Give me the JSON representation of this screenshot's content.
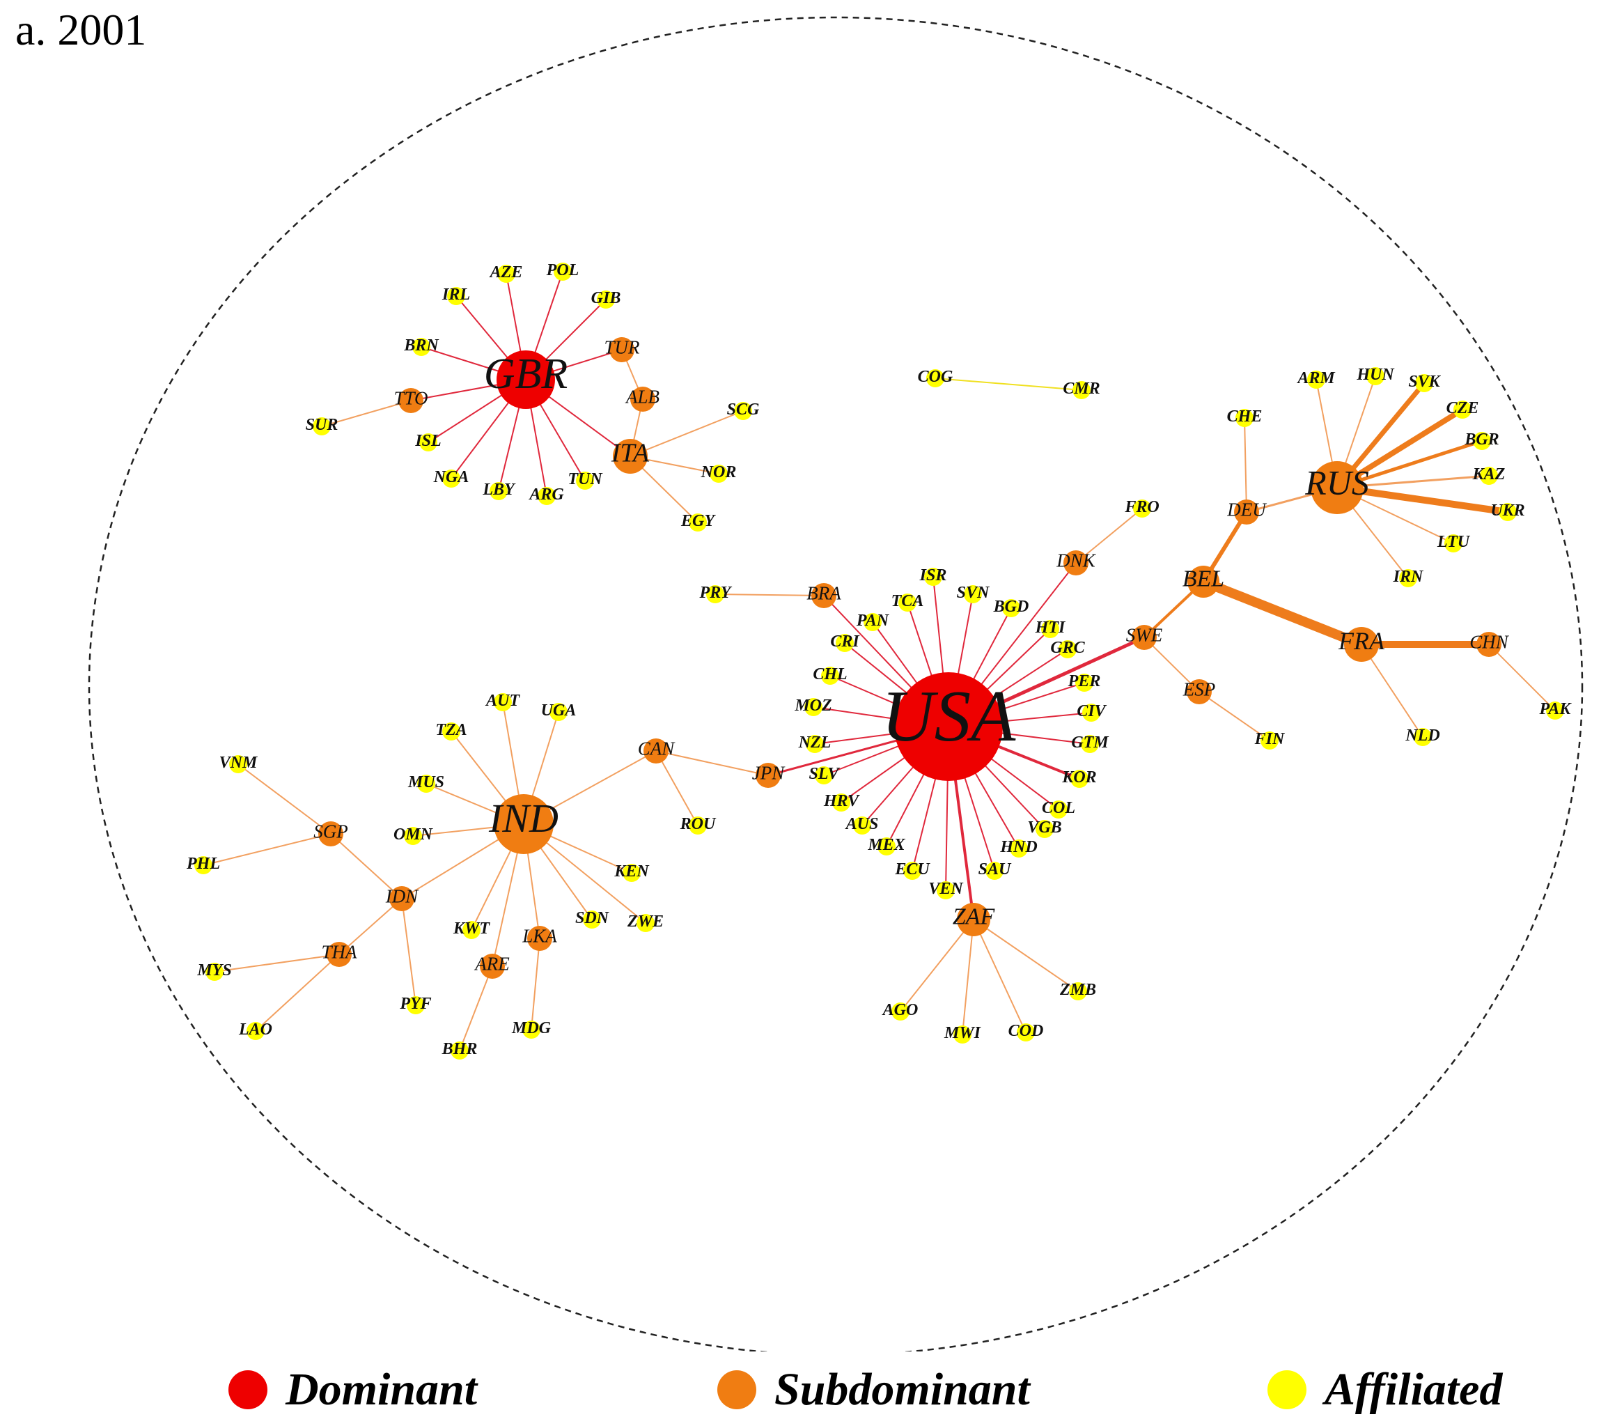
{
  "panel_label": "a. 2001",
  "colors": {
    "dominant": "#ee0000",
    "subdominant": "#f07d12",
    "affiliated": "#ffff00",
    "dominant_edge": "#e0283c",
    "subdominant_edge": "#f2a060",
    "affiliated_edge": "#f0e020"
  },
  "legend": [
    {
      "label": "Dominant",
      "role": "dominant"
    },
    {
      "label": "Subdominant",
      "role": "subdominant"
    },
    {
      "label": "Affiliated",
      "role": "affiliated"
    }
  ],
  "network": {
    "nodes": [
      {
        "id": "USA",
        "role": "dominant"
      },
      {
        "id": "GBR",
        "role": "dominant"
      },
      {
        "id": "IND",
        "role": "subdominant"
      },
      {
        "id": "RUS",
        "role": "subdominant"
      },
      {
        "id": "FRA",
        "role": "subdominant"
      },
      {
        "id": "BEL",
        "role": "subdominant"
      },
      {
        "id": "DEU",
        "role": "subdominant"
      },
      {
        "id": "SWE",
        "role": "subdominant"
      },
      {
        "id": "ESP",
        "role": "subdominant"
      },
      {
        "id": "CHN",
        "role": "subdominant"
      },
      {
        "id": "DNK",
        "role": "subdominant"
      },
      {
        "id": "ITA",
        "role": "subdominant"
      },
      {
        "id": "TUR",
        "role": "subdominant"
      },
      {
        "id": "ALB",
        "role": "subdominant"
      },
      {
        "id": "TTO",
        "role": "subdominant"
      },
      {
        "id": "BRA",
        "role": "subdominant"
      },
      {
        "id": "CAN",
        "role": "subdominant"
      },
      {
        "id": "JPN",
        "role": "subdominant"
      },
      {
        "id": "ZAF",
        "role": "subdominant"
      },
      {
        "id": "SGP",
        "role": "subdominant"
      },
      {
        "id": "IDN",
        "role": "subdominant"
      },
      {
        "id": "THA",
        "role": "subdominant"
      },
      {
        "id": "LKA",
        "role": "subdominant"
      },
      {
        "id": "ARE",
        "role": "subdominant"
      },
      {
        "id": "AZE",
        "role": "affiliated"
      },
      {
        "id": "POL",
        "role": "affiliated"
      },
      {
        "id": "IRL",
        "role": "affiliated"
      },
      {
        "id": "GIB",
        "role": "affiliated"
      },
      {
        "id": "BRN",
        "role": "affiliated"
      },
      {
        "id": "SUR",
        "role": "affiliated"
      },
      {
        "id": "ISL",
        "role": "affiliated"
      },
      {
        "id": "NGA",
        "role": "affiliated"
      },
      {
        "id": "LBY",
        "role": "affiliated"
      },
      {
        "id": "ARG",
        "role": "affiliated"
      },
      {
        "id": "TUN",
        "role": "affiliated"
      },
      {
        "id": "SCG",
        "role": "affiliated"
      },
      {
        "id": "NOR",
        "role": "affiliated"
      },
      {
        "id": "EGY",
        "role": "affiliated"
      },
      {
        "id": "COG",
        "role": "affiliated"
      },
      {
        "id": "CMR",
        "role": "affiliated"
      },
      {
        "id": "ARM",
        "role": "affiliated"
      },
      {
        "id": "HUN",
        "role": "affiliated"
      },
      {
        "id": "SVK",
        "role": "affiliated"
      },
      {
        "id": "CZE",
        "role": "affiliated"
      },
      {
        "id": "BGR",
        "role": "affiliated"
      },
      {
        "id": "KAZ",
        "role": "affiliated"
      },
      {
        "id": "UKR",
        "role": "affiliated"
      },
      {
        "id": "LTU",
        "role": "affiliated"
      },
      {
        "id": "IRN",
        "role": "affiliated"
      },
      {
        "id": "CHE",
        "role": "affiliated"
      },
      {
        "id": "FRO",
        "role": "affiliated"
      },
      {
        "id": "NLD",
        "role": "affiliated"
      },
      {
        "id": "PAK",
        "role": "affiliated"
      },
      {
        "id": "FIN",
        "role": "affiliated"
      },
      {
        "id": "PRY",
        "role": "affiliated"
      },
      {
        "id": "ISR",
        "role": "affiliated"
      },
      {
        "id": "SVN",
        "role": "affiliated"
      },
      {
        "id": "BGD",
        "role": "affiliated"
      },
      {
        "id": "TCA",
        "role": "affiliated"
      },
      {
        "id": "PAN",
        "role": "affiliated"
      },
      {
        "id": "CRI",
        "role": "affiliated"
      },
      {
        "id": "HTI",
        "role": "affiliated"
      },
      {
        "id": "GRC",
        "role": "affiliated"
      },
      {
        "id": "CHL",
        "role": "affiliated"
      },
      {
        "id": "PER",
        "role": "affiliated"
      },
      {
        "id": "MOZ",
        "role": "affiliated"
      },
      {
        "id": "CIV",
        "role": "affiliated"
      },
      {
        "id": "NZL",
        "role": "affiliated"
      },
      {
        "id": "GTM",
        "role": "affiliated"
      },
      {
        "id": "SLV",
        "role": "affiliated"
      },
      {
        "id": "KOR",
        "role": "affiliated"
      },
      {
        "id": "HRV",
        "role": "affiliated"
      },
      {
        "id": "COL",
        "role": "affiliated"
      },
      {
        "id": "AUS",
        "role": "affiliated"
      },
      {
        "id": "VGB",
        "role": "affiliated"
      },
      {
        "id": "MEX",
        "role": "affiliated"
      },
      {
        "id": "HND",
        "role": "affiliated"
      },
      {
        "id": "ECU",
        "role": "affiliated"
      },
      {
        "id": "SAU",
        "role": "affiliated"
      },
      {
        "id": "VEN",
        "role": "affiliated"
      },
      {
        "id": "AGO",
        "role": "affiliated"
      },
      {
        "id": "MWI",
        "role": "affiliated"
      },
      {
        "id": "COD",
        "role": "affiliated"
      },
      {
        "id": "ZMB",
        "role": "affiliated"
      },
      {
        "id": "AUT",
        "role": "affiliated"
      },
      {
        "id": "UGA",
        "role": "affiliated"
      },
      {
        "id": "TZA",
        "role": "affiliated"
      },
      {
        "id": "MUS",
        "role": "affiliated"
      },
      {
        "id": "OMN",
        "role": "affiliated"
      },
      {
        "id": "KEN",
        "role": "affiliated"
      },
      {
        "id": "ZWE",
        "role": "affiliated"
      },
      {
        "id": "SDN",
        "role": "affiliated"
      },
      {
        "id": "KWT",
        "role": "affiliated"
      },
      {
        "id": "MDG",
        "role": "affiliated"
      },
      {
        "id": "BHR",
        "role": "affiliated"
      },
      {
        "id": "VNM",
        "role": "affiliated"
      },
      {
        "id": "PHL",
        "role": "affiliated"
      },
      {
        "id": "MYS",
        "role": "affiliated"
      },
      {
        "id": "LAO",
        "role": "affiliated"
      },
      {
        "id": "PYF",
        "role": "affiliated"
      },
      {
        "id": "ROU",
        "role": "affiliated"
      }
    ],
    "edges": [
      [
        "GBR",
        "AZE"
      ],
      [
        "GBR",
        "POL"
      ],
      [
        "GBR",
        "IRL"
      ],
      [
        "GBR",
        "GIB"
      ],
      [
        "GBR",
        "BRN"
      ],
      [
        "GBR",
        "TUR"
      ],
      [
        "GBR",
        "TTO"
      ],
      [
        "GBR",
        "ISL"
      ],
      [
        "GBR",
        "NGA"
      ],
      [
        "GBR",
        "LBY"
      ],
      [
        "GBR",
        "ARG"
      ],
      [
        "GBR",
        "TUN"
      ],
      [
        "GBR",
        "ITA"
      ],
      [
        "TTO",
        "SUR"
      ],
      [
        "TUR",
        "ALB"
      ],
      [
        "ALB",
        "ITA"
      ],
      [
        "ITA",
        "SCG"
      ],
      [
        "ITA",
        "NOR"
      ],
      [
        "ITA",
        "EGY"
      ],
      [
        "COG",
        "CMR"
      ],
      [
        "RUS",
        "ARM"
      ],
      [
        "RUS",
        "HUN"
      ],
      [
        "RUS",
        "SVK"
      ],
      [
        "RUS",
        "CZE"
      ],
      [
        "RUS",
        "BGR"
      ],
      [
        "RUS",
        "KAZ"
      ],
      [
        "RUS",
        "UKR"
      ],
      [
        "RUS",
        "LTU"
      ],
      [
        "RUS",
        "IRN"
      ],
      [
        "RUS",
        "DEU"
      ],
      [
        "DEU",
        "CHE"
      ],
      [
        "DEU",
        "BEL"
      ],
      [
        "BEL",
        "FRA"
      ],
      [
        "BEL",
        "SWE"
      ],
      [
        "FRA",
        "CHN"
      ],
      [
        "FRA",
        "NLD"
      ],
      [
        "CHN",
        "PAK"
      ],
      [
        "SWE",
        "ESP"
      ],
      [
        "ESP",
        "FIN"
      ],
      [
        "SWE",
        "USA"
      ],
      [
        "DNK",
        "FRO"
      ],
      [
        "USA",
        "DNK"
      ],
      [
        "USA",
        "ISR"
      ],
      [
        "USA",
        "SVN"
      ],
      [
        "USA",
        "BGD"
      ],
      [
        "USA",
        "TCA"
      ],
      [
        "USA",
        "PAN"
      ],
      [
        "USA",
        "CRI"
      ],
      [
        "USA",
        "HTI"
      ],
      [
        "USA",
        "GRC"
      ],
      [
        "USA",
        "CHL"
      ],
      [
        "USA",
        "PER"
      ],
      [
        "USA",
        "MOZ"
      ],
      [
        "USA",
        "CIV"
      ],
      [
        "USA",
        "NZL"
      ],
      [
        "USA",
        "GTM"
      ],
      [
        "USA",
        "SLV"
      ],
      [
        "USA",
        "KOR"
      ],
      [
        "USA",
        "HRV"
      ],
      [
        "USA",
        "COL"
      ],
      [
        "USA",
        "AUS"
      ],
      [
        "USA",
        "VGB"
      ],
      [
        "USA",
        "MEX"
      ],
      [
        "USA",
        "HND"
      ],
      [
        "USA",
        "ECU"
      ],
      [
        "USA",
        "SAU"
      ],
      [
        "USA",
        "VEN"
      ],
      [
        "USA",
        "ZAF"
      ],
      [
        "USA",
        "BRA"
      ],
      [
        "USA",
        "JPN"
      ],
      [
        "BRA",
        "PRY"
      ],
      [
        "ZAF",
        "AGO"
      ],
      [
        "ZAF",
        "MWI"
      ],
      [
        "ZAF",
        "COD"
      ],
      [
        "ZAF",
        "ZMB"
      ],
      [
        "JPN",
        "CAN"
      ],
      [
        "CAN",
        "IND"
      ],
      [
        "CAN",
        "ROU"
      ],
      [
        "IND",
        "AUT"
      ],
      [
        "IND",
        "UGA"
      ],
      [
        "IND",
        "TZA"
      ],
      [
        "IND",
        "MUS"
      ],
      [
        "IND",
        "OMN"
      ],
      [
        "IND",
        "KEN"
      ],
      [
        "IND",
        "ZWE"
      ],
      [
        "IND",
        "SDN"
      ],
      [
        "IND",
        "LKA"
      ],
      [
        "IND",
        "ARE"
      ],
      [
        "IND",
        "KWT"
      ],
      [
        "IND",
        "IDN"
      ],
      [
        "LKA",
        "MDG"
      ],
      [
        "ARE",
        "BHR"
      ],
      [
        "IDN",
        "SGP"
      ],
      [
        "IDN",
        "THA"
      ],
      [
        "IDN",
        "PYF"
      ],
      [
        "SGP",
        "VNM"
      ],
      [
        "SGP",
        "PHL"
      ],
      [
        "THA",
        "MYS"
      ],
      [
        "THA",
        "LAO"
      ]
    ]
  }
}
